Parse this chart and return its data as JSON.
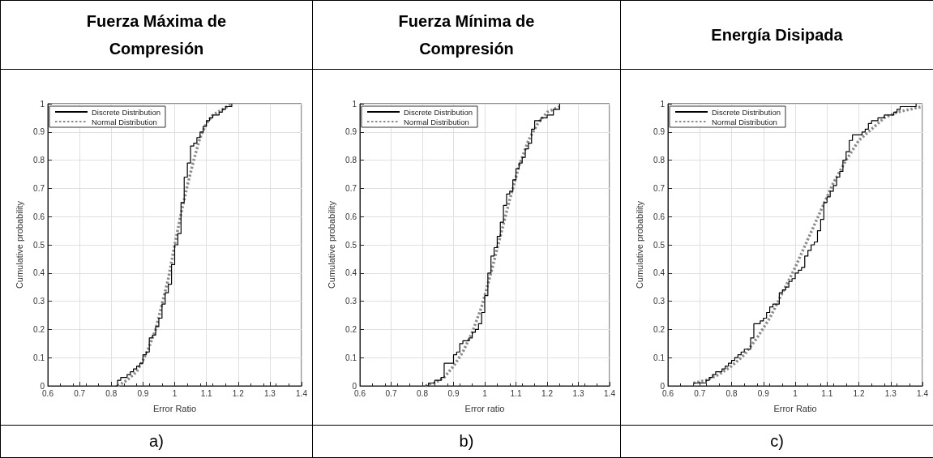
{
  "chart_data": [
    {
      "type": "step",
      "title": "Fuerza Máxima de Compresión",
      "xlabel": "Error Ratio",
      "ylabel": "Cumulative probability",
      "annotations": [
        "a)"
      ],
      "xlim": [
        0.6,
        1.4
      ],
      "xticks": [
        0.6,
        0.7,
        0.8,
        0.9,
        1,
        1.1,
        1.2,
        1.3,
        1.4
      ],
      "ylim": [
        0,
        1
      ],
      "yticks": [
        0,
        0.1,
        0.2,
        0.3,
        0.4,
        0.5,
        0.6,
        0.7,
        0.8,
        0.9,
        1
      ],
      "grid": true,
      "legend": "top left",
      "series": [
        {
          "name": "Discrete Distribution",
          "type": "step",
          "color": "#000000",
          "line_style": "solid",
          "x": [
            0.815,
            0.82,
            0.83,
            0.85,
            0.86,
            0.87,
            0.88,
            0.89,
            0.9,
            0.91,
            0.92,
            0.93,
            0.94,
            0.95,
            0.96,
            0.97,
            0.98,
            0.99,
            1.0,
            1.01,
            1.02,
            1.03,
            1.04,
            1.05,
            1.06,
            1.07,
            1.08,
            1.09,
            1.1,
            1.11,
            1.12,
            1.14,
            1.15,
            1.16,
            1.18
          ],
          "values": [
            0,
            0.02,
            0.03,
            0.04,
            0.05,
            0.06,
            0.07,
            0.08,
            0.11,
            0.12,
            0.17,
            0.18,
            0.21,
            0.24,
            0.29,
            0.33,
            0.36,
            0.43,
            0.5,
            0.54,
            0.65,
            0.74,
            0.79,
            0.85,
            0.86,
            0.88,
            0.9,
            0.92,
            0.94,
            0.95,
            0.96,
            0.97,
            0.98,
            0.99,
            1.0
          ]
        },
        {
          "name": "Normal Distribution",
          "type": "line",
          "color": "#8c8c8c",
          "line_style": "dotted",
          "x": [
            0.82,
            0.85,
            0.88,
            0.9,
            0.92,
            0.94,
            0.96,
            0.98,
            1.0,
            1.02,
            1.04,
            1.06,
            1.08,
            1.1,
            1.12,
            1.15,
            1.18
          ],
          "values": [
            0,
            0.02,
            0.05,
            0.09,
            0.14,
            0.2,
            0.29,
            0.38,
            0.5,
            0.61,
            0.71,
            0.8,
            0.88,
            0.93,
            0.96,
            0.98,
            1.0
          ]
        }
      ]
    },
    {
      "type": "step",
      "title": "Fuerza Mínima de Compresión",
      "xlabel": "Error ratio",
      "ylabel": "Cumulative probability",
      "annotations": [
        "b)"
      ],
      "xlim": [
        0.6,
        1.4
      ],
      "xticks": [
        0.6,
        0.7,
        0.8,
        0.9,
        1,
        1.1,
        1.2,
        1.3,
        1.4
      ],
      "ylim": [
        0,
        1
      ],
      "yticks": [
        0,
        0.1,
        0.2,
        0.3,
        0.4,
        0.5,
        0.6,
        0.7,
        0.8,
        0.9,
        1
      ],
      "grid": true,
      "legend": "top left",
      "series": [
        {
          "name": "Discrete Distribution",
          "type": "step",
          "color": "#000000",
          "line_style": "solid",
          "x": [
            0.81,
            0.82,
            0.84,
            0.86,
            0.87,
            0.9,
            0.91,
            0.92,
            0.93,
            0.95,
            0.96,
            0.97,
            0.98,
            0.99,
            1.0,
            1.01,
            1.02,
            1.03,
            1.04,
            1.05,
            1.06,
            1.07,
            1.08,
            1.09,
            1.1,
            1.11,
            1.12,
            1.13,
            1.14,
            1.15,
            1.16,
            1.18,
            1.2,
            1.22,
            1.24
          ],
          "values": [
            0,
            0.01,
            0.02,
            0.03,
            0.08,
            0.11,
            0.12,
            0.15,
            0.16,
            0.17,
            0.19,
            0.2,
            0.22,
            0.26,
            0.32,
            0.4,
            0.46,
            0.49,
            0.53,
            0.58,
            0.64,
            0.68,
            0.69,
            0.73,
            0.77,
            0.79,
            0.81,
            0.84,
            0.86,
            0.91,
            0.94,
            0.95,
            0.96,
            0.98,
            1.0
          ]
        },
        {
          "name": "Normal Distribution",
          "type": "line",
          "color": "#8c8c8c",
          "line_style": "dotted",
          "x": [
            0.81,
            0.84,
            0.87,
            0.9,
            0.93,
            0.96,
            0.99,
            1.02,
            1.05,
            1.08,
            1.11,
            1.14,
            1.17,
            1.2,
            1.24
          ],
          "values": [
            0,
            0.01,
            0.03,
            0.07,
            0.12,
            0.19,
            0.28,
            0.4,
            0.53,
            0.66,
            0.78,
            0.87,
            0.93,
            0.97,
            0.99
          ]
        }
      ]
    },
    {
      "type": "step",
      "title": "Energía Disipada",
      "xlabel": "Error Ratio",
      "ylabel": "Cumulative probability",
      "annotations": [
        "c)"
      ],
      "xlim": [
        0.6,
        1.4
      ],
      "xticks": [
        0.6,
        0.7,
        0.8,
        0.9,
        1,
        1.1,
        1.2,
        1.3,
        1.4
      ],
      "ylim": [
        0,
        1
      ],
      "yticks": [
        0,
        0.1,
        0.2,
        0.3,
        0.4,
        0.5,
        0.6,
        0.7,
        0.8,
        0.9,
        1
      ],
      "grid": true,
      "legend": "top left",
      "series": [
        {
          "name": "Discrete Distribution",
          "type": "step",
          "color": "#000000",
          "line_style": "solid",
          "x": [
            0.68,
            0.72,
            0.73,
            0.74,
            0.75,
            0.77,
            0.78,
            0.79,
            0.8,
            0.81,
            0.82,
            0.83,
            0.84,
            0.86,
            0.87,
            0.89,
            0.9,
            0.91,
            0.92,
            0.93,
            0.95,
            0.96,
            0.97,
            0.98,
            0.99,
            1.0,
            1.01,
            1.02,
            1.03,
            1.04,
            1.05,
            1.06,
            1.07,
            1.08,
            1.09,
            1.1,
            1.11,
            1.12,
            1.13,
            1.14,
            1.15,
            1.16,
            1.17,
            1.18,
            1.21,
            1.22,
            1.23,
            1.24,
            1.26,
            1.28,
            1.31,
            1.32,
            1.33,
            1.38
          ],
          "values": [
            0.01,
            0.02,
            0.03,
            0.04,
            0.05,
            0.06,
            0.07,
            0.08,
            0.09,
            0.1,
            0.11,
            0.12,
            0.13,
            0.17,
            0.22,
            0.23,
            0.24,
            0.26,
            0.28,
            0.29,
            0.33,
            0.34,
            0.35,
            0.37,
            0.38,
            0.4,
            0.41,
            0.42,
            0.46,
            0.48,
            0.5,
            0.51,
            0.55,
            0.59,
            0.65,
            0.67,
            0.69,
            0.71,
            0.74,
            0.76,
            0.8,
            0.83,
            0.87,
            0.89,
            0.9,
            0.91,
            0.93,
            0.94,
            0.95,
            0.96,
            0.97,
            0.98,
            0.99,
            1.0
          ]
        },
        {
          "name": "Normal Distribution",
          "type": "line",
          "color": "#8c8c8c",
          "line_style": "dotted",
          "x": [
            0.68,
            0.72,
            0.76,
            0.8,
            0.84,
            0.88,
            0.92,
            0.96,
            1.0,
            1.04,
            1.08,
            1.12,
            1.16,
            1.2,
            1.24,
            1.28,
            1.32,
            1.36,
            1.4
          ],
          "values": [
            0.01,
            0.02,
            0.04,
            0.07,
            0.11,
            0.17,
            0.24,
            0.33,
            0.42,
            0.52,
            0.62,
            0.72,
            0.8,
            0.87,
            0.91,
            0.95,
            0.97,
            0.98,
            0.99
          ]
        }
      ]
    }
  ]
}
